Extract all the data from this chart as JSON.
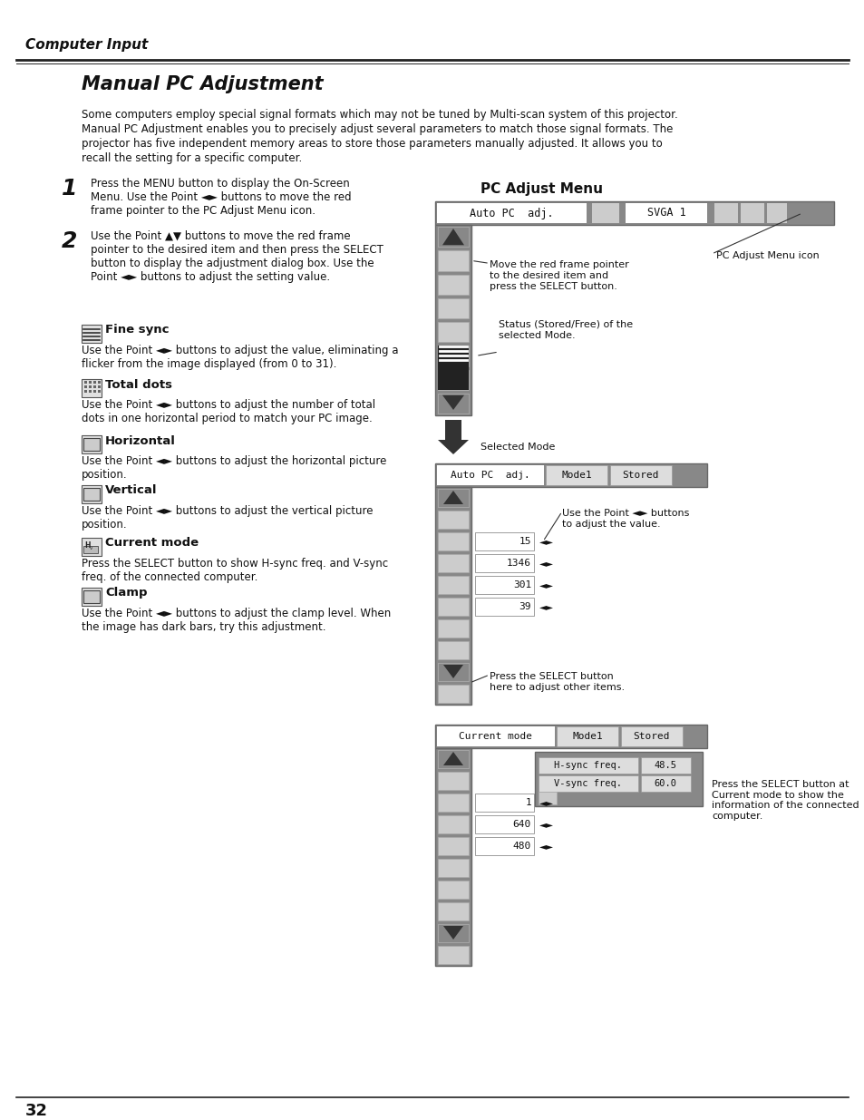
{
  "page_number": "32",
  "header_text": "Computer Input",
  "title": "Manual PC Adjustment",
  "body_text": "Some computers employ special signal formats which may not be tuned by Multi-scan system of this projector.\nManual PC Adjustment enables you to precisely adjust several parameters to match those signal formats. The\nprojector has five independent memory areas to store those parameters manually adjusted. It allows you to\nrecall the setting for a specific computer.",
  "step1_num": "1",
  "step1_text": "Press the MENU button to display the On-Screen\nMenu. Use the Point ◄► buttons to move the red\nframe pointer to the PC Adjust Menu icon.",
  "step2_num": "2",
  "step2_text": "Use the Point ▲▼ buttons to move the red frame\npointer to the desired item and then press the SELECT\nbutton to display the adjustment dialog box. Use the\nPoint ◄► buttons to adjust the setting value.",
  "fine_sync_title": "Fine sync",
  "fine_sync_text": "Use the Point ◄► buttons to adjust the value, eliminating a\nflicker from the image displayed (from 0 to 31).",
  "total_dots_title": "Total dots",
  "total_dots_text": "Use the Point ◄► buttons to adjust the number of total\ndots in one horizontal period to match your PC image.",
  "horizontal_title": "Horizontal",
  "horizontal_text": "Use the Point ◄► buttons to adjust the horizontal picture\nposition.",
  "vertical_title": "Vertical",
  "vertical_text": "Use the Point ◄► buttons to adjust the vertical picture\nposition.",
  "current_mode_title": "Current mode",
  "current_mode_text": "Press the SELECT button to show H-sync freq. and V-sync\nfreq. of the connected computer.",
  "clamp_title": "Clamp",
  "clamp_text": "Use the Point ◄► buttons to adjust the clamp level. When\nthe image has dark bars, try this adjustment.",
  "pc_adjust_menu_title": "PC Adjust Menu",
  "annotation1": "PC Adjust Menu icon",
  "annotation2": "Move the red frame pointer\nto the desired item and\npress the SELECT button.",
  "annotation3": "Status (Stored/Free) of the\nselected Mode.",
  "annotation4": "Selected Mode",
  "annotation5": "Use the Point ◄► buttons\nto adjust the value.",
  "annotation6": "Press the SELECT button\nhere to adjust other items.",
  "annotation7": "Press the SELECT button at\nCurrent mode to show the\ninformation of the connected\ncomputer.",
  "menu1_label1": "Auto PC  adj.",
  "menu1_label2": "SVGA 1",
  "menu2_label1": "Auto PC  adj.",
  "menu2_label2": "Mode1",
  "menu2_label3": "Stored",
  "menu3_label1": "Current mode",
  "menu3_label2": "Mode1",
  "menu3_label3": "Stored",
  "values_menu2": [
    "15",
    "1346",
    "301",
    "39"
  ],
  "values_menu3": [
    "1",
    "640",
    "480"
  ],
  "hsync": "48.5",
  "vsync": "60.0"
}
